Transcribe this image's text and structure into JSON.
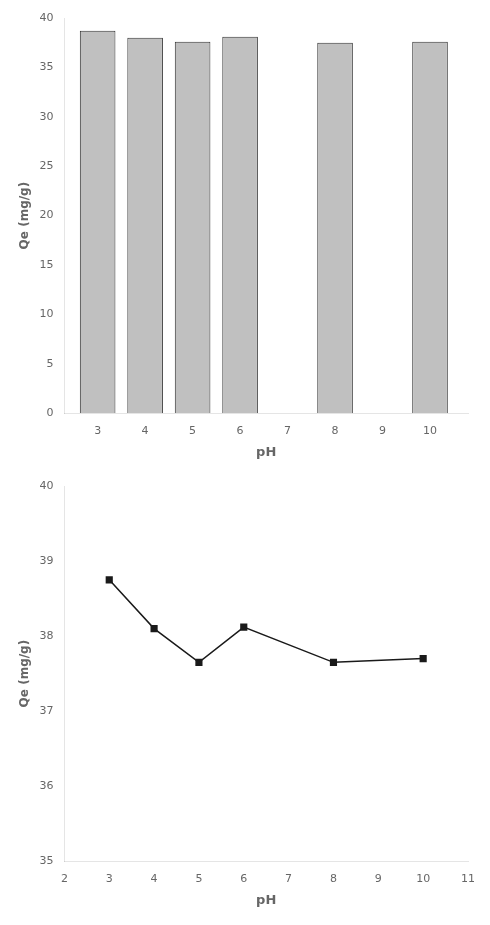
{
  "chart_data": [
    {
      "type": "bar",
      "x": [
        3,
        4,
        5,
        6,
        8,
        10
      ],
      "values": [
        38.7,
        38.0,
        37.6,
        38.1,
        37.5,
        37.6
      ],
      "color": "#c0c0c0",
      "xlabel": "pH",
      "ylabel": "Qe (mg/g)",
      "xlim": [
        2.3,
        10.8
      ],
      "xticks": [
        3,
        4,
        5,
        6,
        7,
        8,
        9,
        10
      ],
      "ylim": [
        0,
        40
      ],
      "yticks": [
        0,
        5,
        10,
        15,
        20,
        25,
        30,
        35,
        40
      ],
      "grid": false
    },
    {
      "type": "line",
      "x": [
        3,
        4,
        5,
        6,
        8,
        10
      ],
      "values": [
        38.75,
        38.1,
        37.65,
        38.12,
        37.65,
        37.7
      ],
      "color": "#1a1a1a",
      "marker": "square",
      "xlabel": "pH",
      "ylabel": "Qe (mg/g)",
      "xlim": [
        2,
        11
      ],
      "xticks": [
        2,
        3,
        4,
        5,
        6,
        7,
        8,
        9,
        10,
        11
      ],
      "ylim": [
        35,
        40
      ],
      "yticks": [
        35,
        36,
        37,
        38,
        39,
        40
      ],
      "grid": false
    }
  ]
}
